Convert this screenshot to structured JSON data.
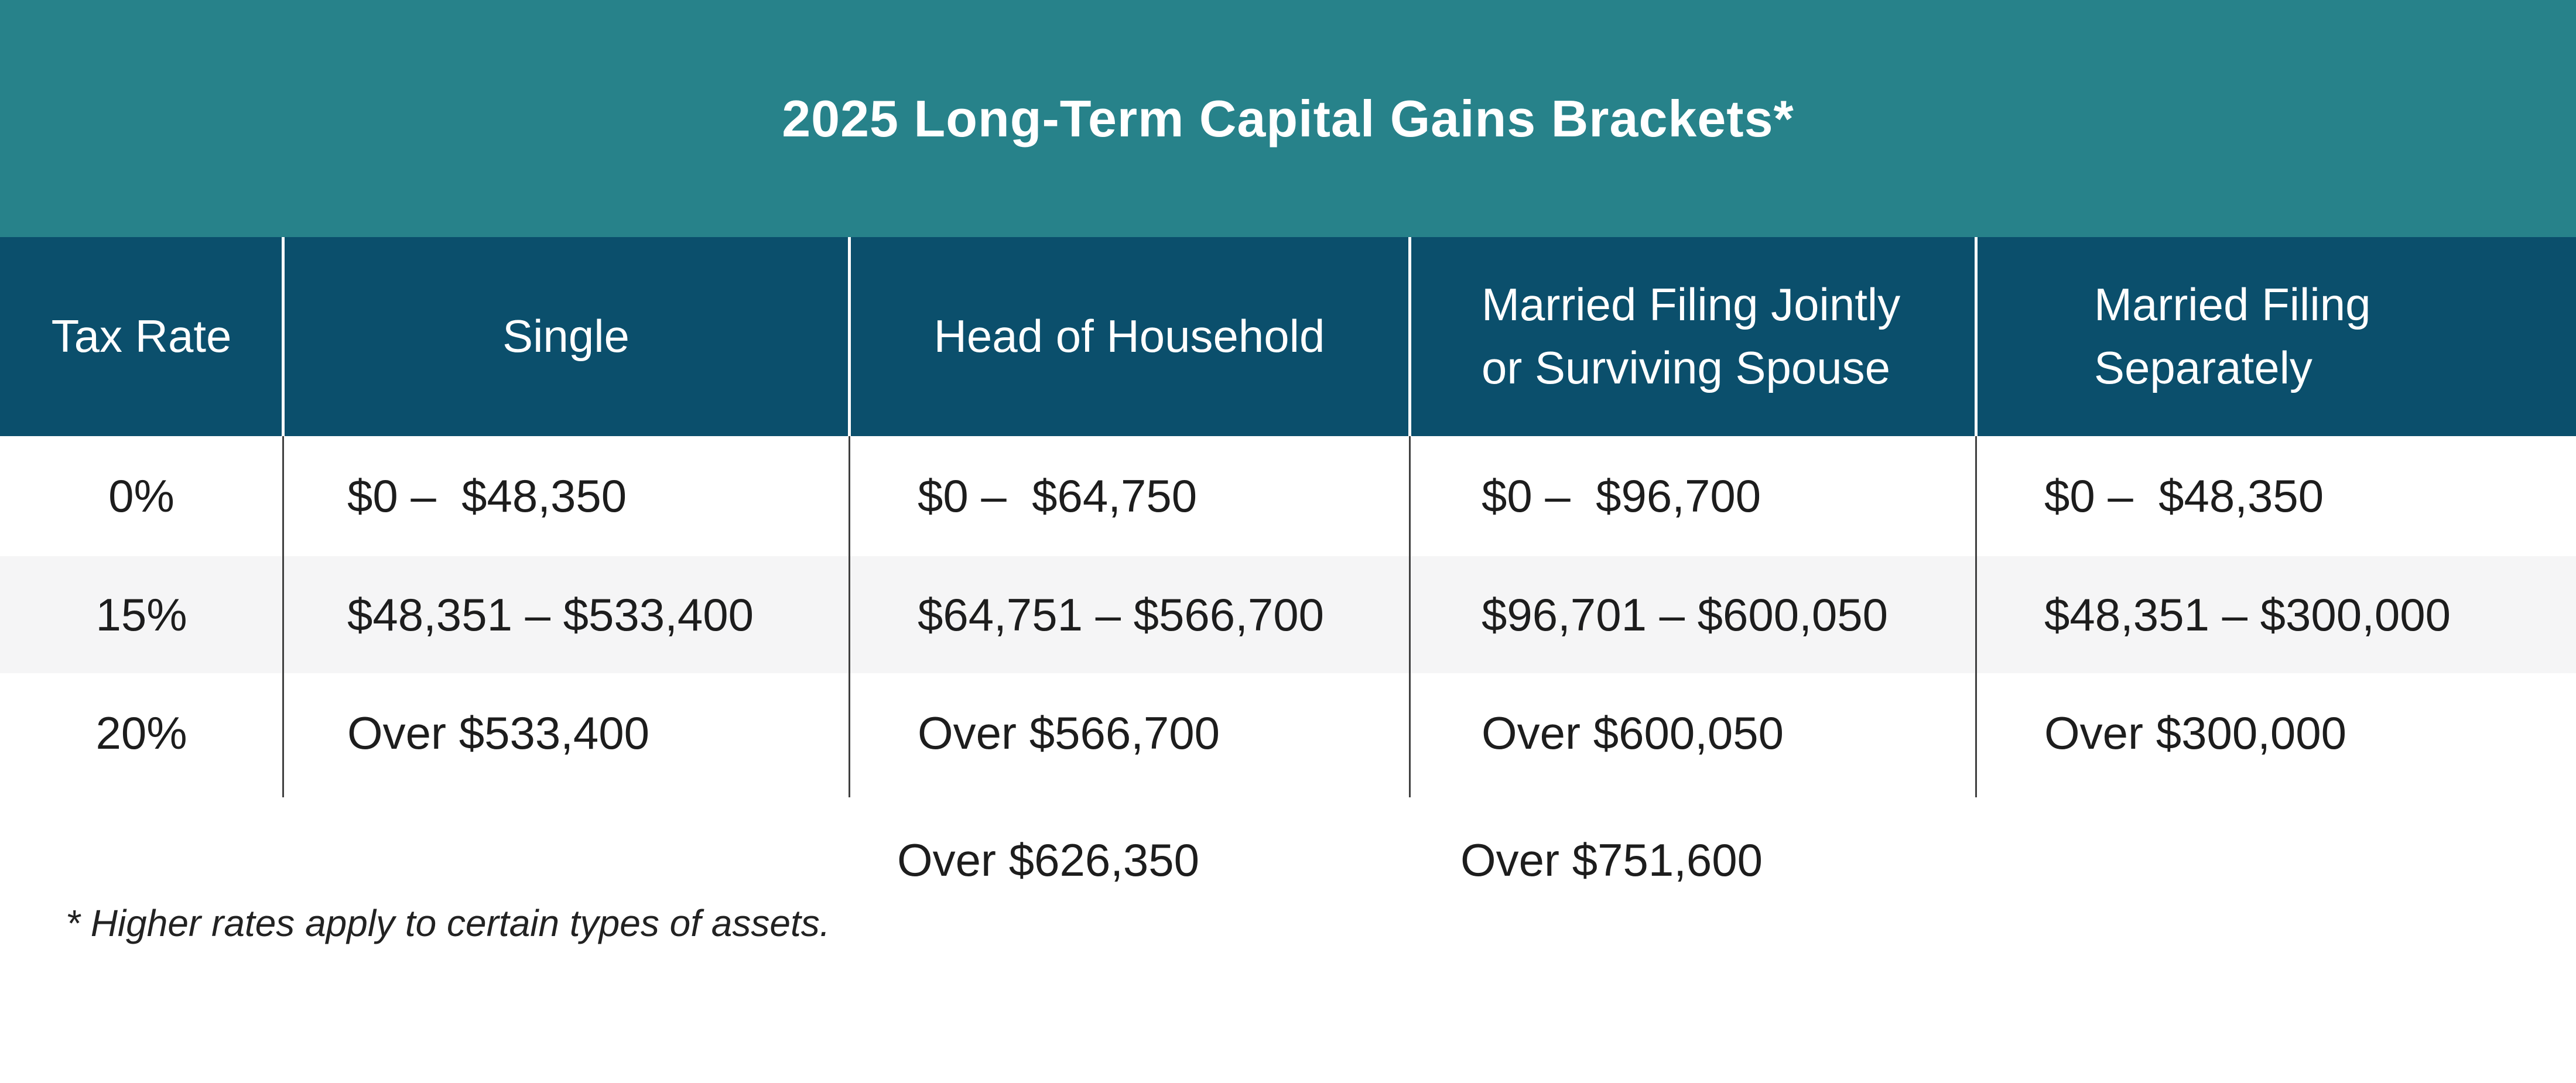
{
  "title": "2025 Long-Term Capital Gains Brackets*",
  "columns": [
    "Tax Rate",
    "Single",
    "Head of Household",
    "Married Filing Jointly\nor Surviving Spouse",
    "Married Filing\nSeparately"
  ],
  "rows": [
    [
      "0%",
      "$0 –  $48,350",
      "$0 –  $64,750",
      "$0 –  $96,700",
      "$0 –  $48,350"
    ],
    [
      "15%",
      "$48,351 – $533,400",
      "$64,751 – $566,700",
      "$96,701 – $600,050",
      "$48,351 – $300,000"
    ],
    [
      "20%",
      "Over $533,400",
      "Over $566,700",
      "Over $600,050",
      "Over $300,000"
    ]
  ],
  "overflow_row": [
    "Over $626,350",
    "Over $751,600"
  ],
  "footnote": "* Higher rates apply to certain types of assets.",
  "colors": {
    "title_band": "#27828a",
    "header_band": "#0b4f6c",
    "row_alt": "#f5f5f6",
    "row_default": "#ffffff",
    "header_text": "#ffffff",
    "body_text": "#1d1d1d",
    "header_divider": "#ffffff",
    "body_divider": "#404040"
  },
  "chart_data": {
    "type": "table",
    "title": "2025 Long-Term Capital Gains Brackets*",
    "columns": [
      "Tax Rate",
      "Single",
      "Head of Household",
      "Married Filing Jointly or Surviving Spouse",
      "Married Filing Separately"
    ],
    "rows": [
      [
        "0%",
        "$0 – $48,350",
        "$0 – $64,750",
        "$0 – $96,700",
        "$0 – $48,350"
      ],
      [
        "15%",
        "$48,351 – $533,400",
        "$64,751 – $566,700",
        "$96,701 – $600,050",
        "$48,351 – $300,000"
      ],
      [
        "20%",
        "Over $533,400",
        "Over $566,700",
        "Over $600,050",
        "Over $300,000"
      ]
    ],
    "stray_values_below_table": [
      "Over $626,350",
      "Over $751,600"
    ],
    "footnote": "* Higher rates apply to certain types of assets.",
    "layout_hints": {
      "header_style": "dark navy band with white text",
      "title_style": "teal band with white bold text",
      "row_striping": "white / light gray alternating",
      "gridlines": "vertical column dividers only"
    }
  }
}
